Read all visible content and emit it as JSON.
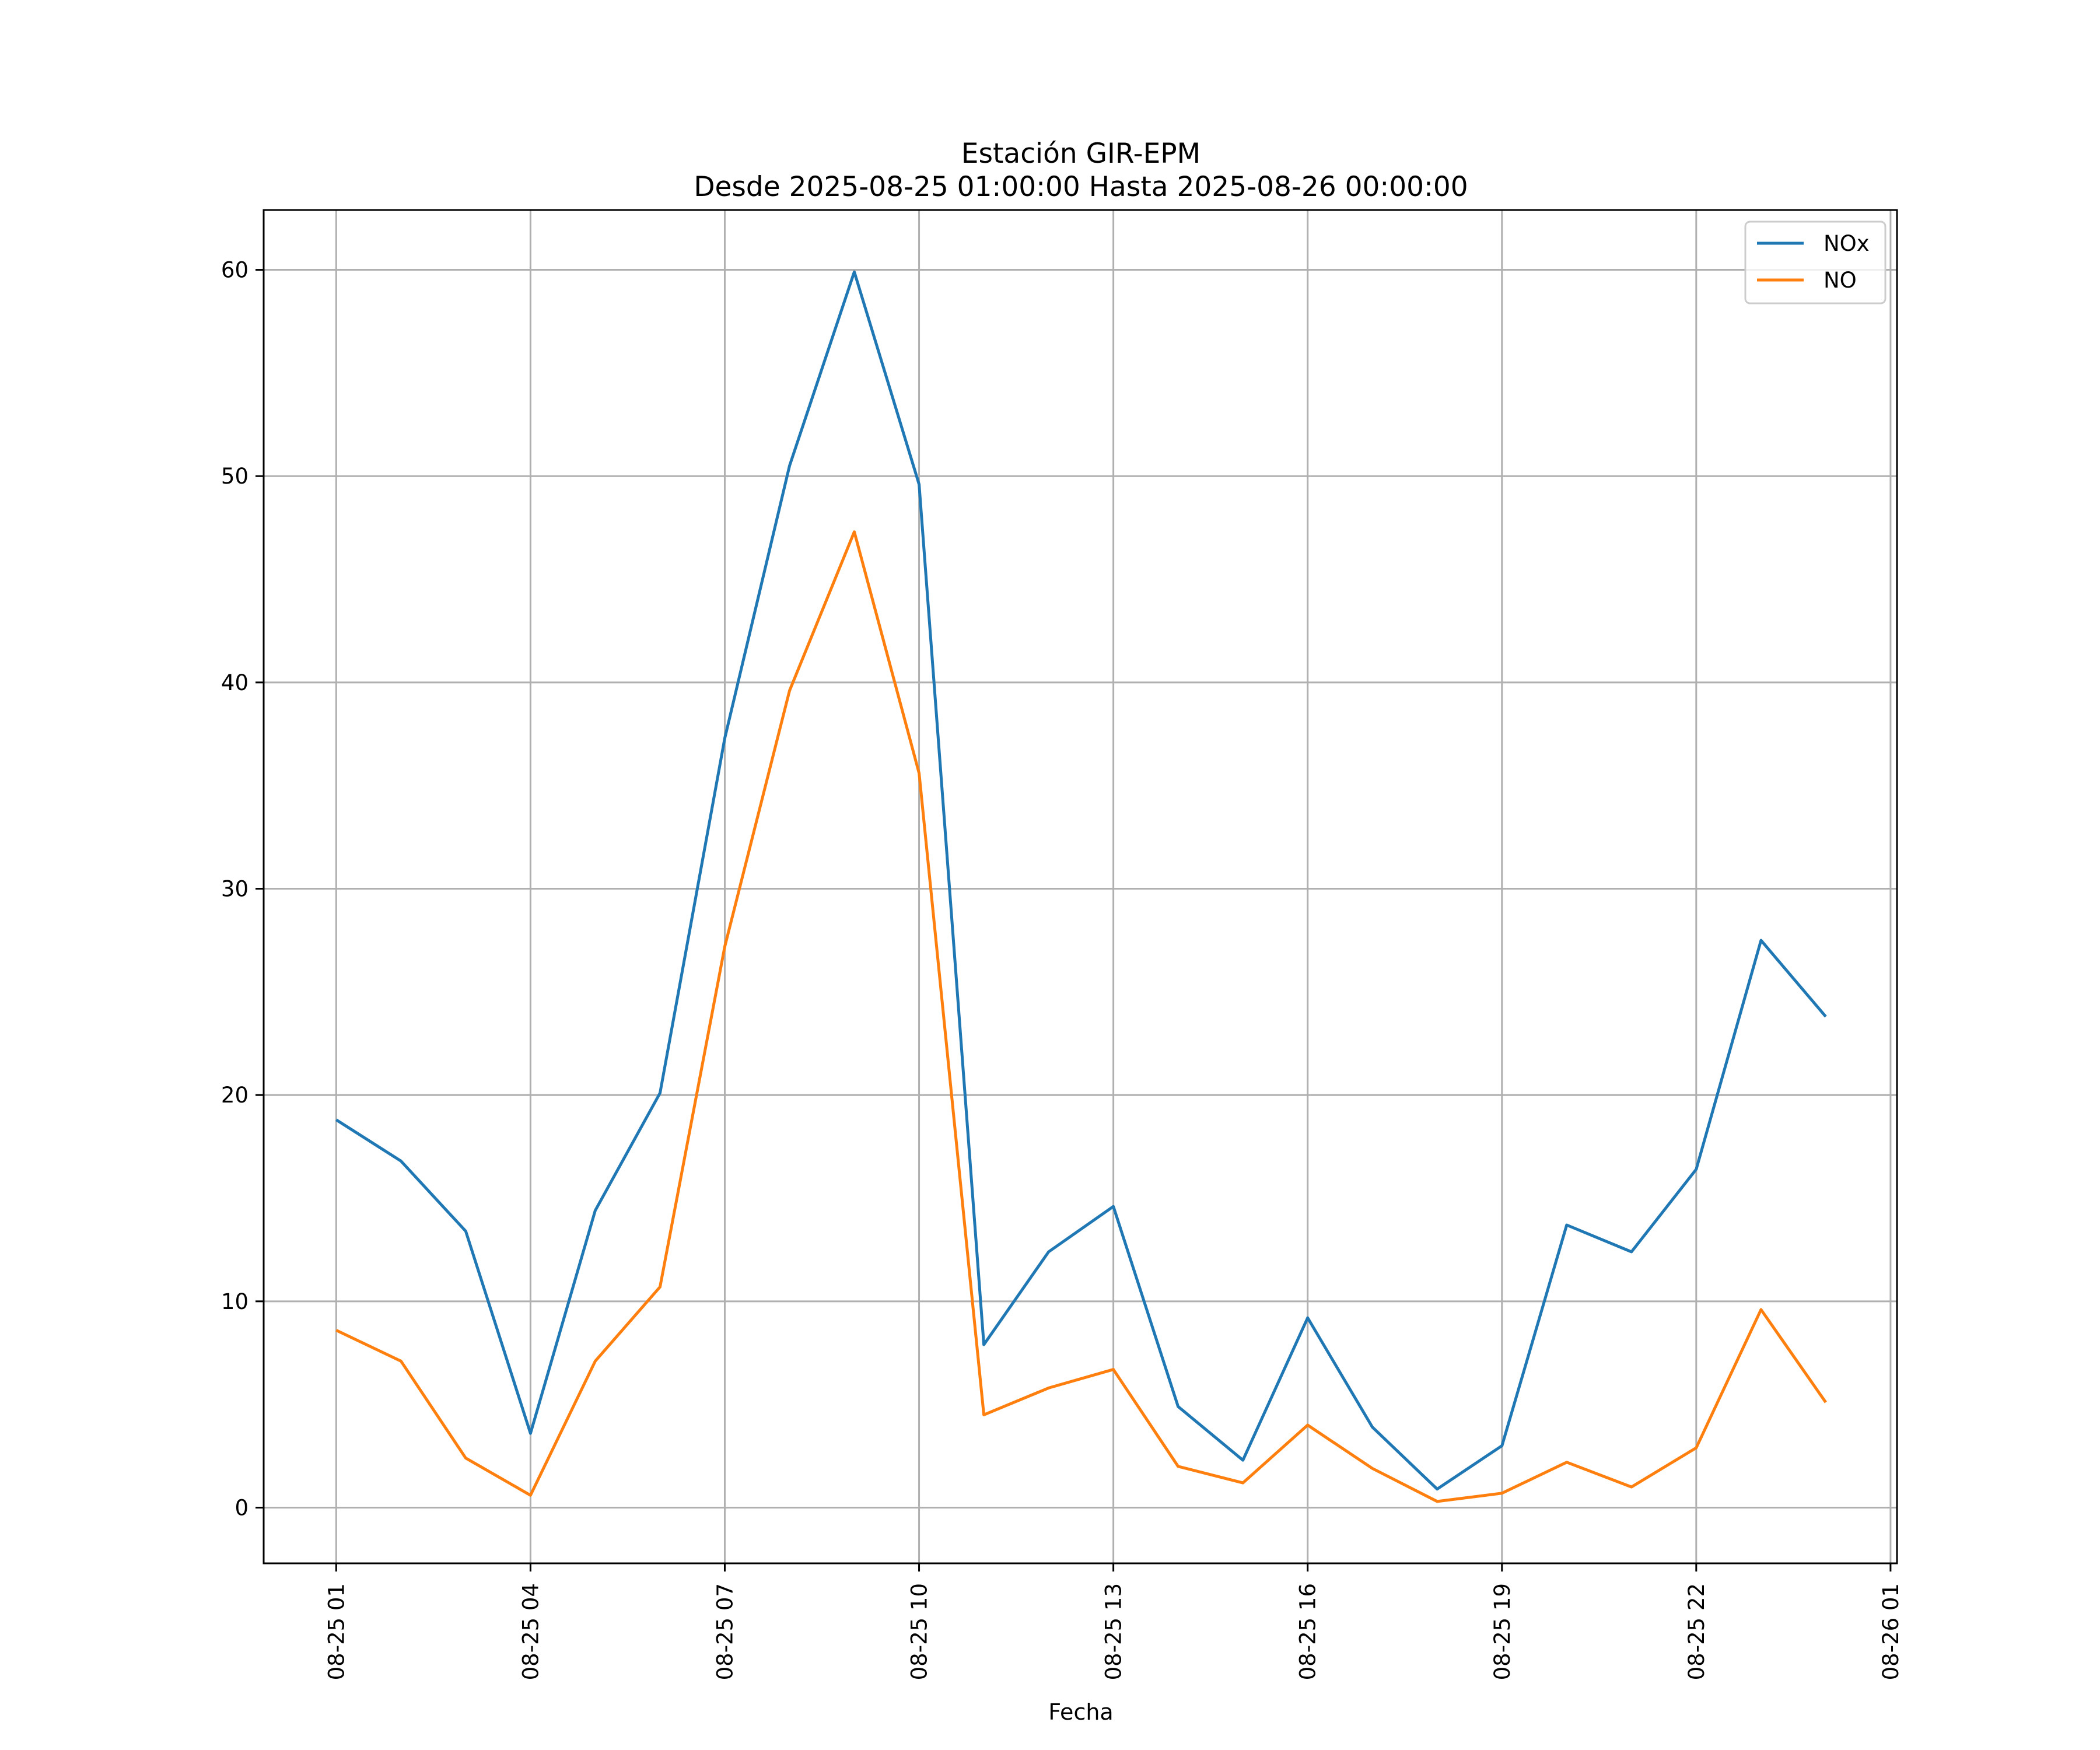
{
  "chart_data": {
    "type": "line",
    "title": "Estación GIR-EPM",
    "subtitle": "Desde 2025-08-25 01:00:00 Hasta 2025-08-26 00:00:00",
    "xlabel": "Fecha",
    "ylabel": "",
    "x_hours": [
      1,
      2,
      3,
      4,
      5,
      6,
      7,
      8,
      9,
      10,
      11,
      12,
      13,
      14,
      15,
      16,
      17,
      18,
      19,
      20,
      21,
      22,
      23,
      24
    ],
    "xlim": [
      -0.12,
      25.1
    ],
    "ylim": [
      -2.7,
      62.9
    ],
    "x_ticks": [
      {
        "hour": 1,
        "label": "08-25 01"
      },
      {
        "hour": 4,
        "label": "08-25 04"
      },
      {
        "hour": 7,
        "label": "08-25 07"
      },
      {
        "hour": 10,
        "label": "08-25 10"
      },
      {
        "hour": 13,
        "label": "08-25 13"
      },
      {
        "hour": 16,
        "label": "08-25 16"
      },
      {
        "hour": 19,
        "label": "08-25 19"
      },
      {
        "hour": 22,
        "label": "08-25 22"
      },
      {
        "hour": 25,
        "label": "08-26 01"
      }
    ],
    "y_ticks": [
      {
        "value": 0,
        "label": "0"
      },
      {
        "value": 10,
        "label": "10"
      },
      {
        "value": 20,
        "label": "20"
      },
      {
        "value": 30,
        "label": "30"
      },
      {
        "value": 40,
        "label": "40"
      },
      {
        "value": 50,
        "label": "50"
      },
      {
        "value": 60,
        "label": "60"
      }
    ],
    "grid": true,
    "legend_position": "top-right",
    "series": [
      {
        "name": "NOx",
        "color": "#1f77b4",
        "values": [
          18.8,
          16.8,
          13.4,
          3.6,
          14.4,
          20.1,
          37.3,
          50.5,
          59.9,
          49.6,
          7.9,
          12.4,
          14.6,
          4.9,
          2.3,
          9.2,
          3.9,
          0.9,
          3.0,
          13.7,
          12.4,
          16.4,
          27.5,
          23.8
        ]
      },
      {
        "name": "NO",
        "color": "#ff7f0e",
        "values": [
          8.6,
          7.1,
          2.4,
          0.6,
          7.1,
          10.7,
          27.2,
          39.6,
          47.3,
          35.6,
          4.5,
          5.8,
          6.7,
          2.0,
          1.2,
          4.0,
          1.9,
          0.3,
          0.7,
          2.2,
          1.0,
          2.9,
          9.6,
          5.1
        ]
      }
    ]
  }
}
